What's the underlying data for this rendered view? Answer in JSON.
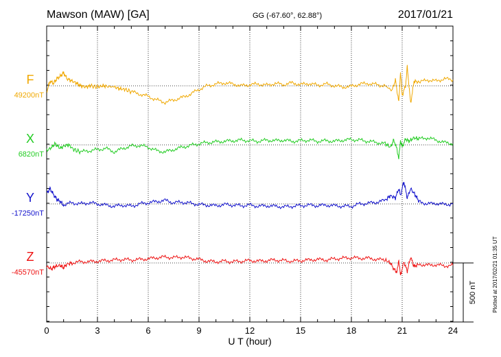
{
  "header": {
    "station": "Mawson (MAW)  [GA]",
    "coords": "GG (-67.60°,  62.88°)",
    "date": "2017/01/21"
  },
  "footer": {
    "plotted": "Plotted at 2017/02/21 01:35 UT"
  },
  "scale_bar": {
    "label": "500 nT",
    "value_nT": 500
  },
  "chart_data": {
    "type": "line",
    "xlabel": "U T (hour)",
    "xlim": [
      0,
      24
    ],
    "xticks": [
      0,
      3,
      6,
      9,
      12,
      15,
      18,
      21,
      24
    ],
    "xtick_labels": [
      "0",
      "3",
      "6",
      "9",
      "12",
      "15",
      "18",
      "21",
      "24"
    ],
    "grid": true,
    "units": "nT",
    "series": [
      {
        "name": "F",
        "baseline_label": "49200nT",
        "baseline": 49200,
        "color": "#f0a800",
        "points": [
          [
            0,
            49150
          ],
          [
            0.2,
            49240
          ],
          [
            0.4,
            49220
          ],
          [
            0.6,
            49260
          ],
          [
            0.8,
            49280
          ],
          [
            1.0,
            49310
          ],
          [
            1.2,
            49260
          ],
          [
            1.5,
            49240
          ],
          [
            1.8,
            49220
          ],
          [
            2.0,
            49200
          ],
          [
            2.3,
            49190
          ],
          [
            2.6,
            49200
          ],
          [
            3.0,
            49190
          ],
          [
            3.3,
            49200
          ],
          [
            3.6,
            49195
          ],
          [
            4.0,
            49190
          ],
          [
            4.3,
            49175
          ],
          [
            4.6,
            49170
          ],
          [
            5.0,
            49150
          ],
          [
            5.5,
            49130
          ],
          [
            6.0,
            49110
          ],
          [
            6.5,
            49080
          ],
          [
            7.0,
            49060
          ],
          [
            7.5,
            49080
          ],
          [
            8.0,
            49100
          ],
          [
            8.5,
            49130
          ],
          [
            9.0,
            49170
          ],
          [
            9.5,
            49200
          ],
          [
            10.0,
            49215
          ],
          [
            10.5,
            49225
          ],
          [
            11.0,
            49215
          ],
          [
            11.5,
            49200
          ],
          [
            12.0,
            49210
          ],
          [
            12.5,
            49215
          ],
          [
            13.0,
            49205
          ],
          [
            13.5,
            49220
          ],
          [
            14.0,
            49210
          ],
          [
            14.5,
            49225
          ],
          [
            15.0,
            49210
          ],
          [
            15.5,
            49220
          ],
          [
            16.0,
            49205
          ],
          [
            16.5,
            49215
          ],
          [
            17.0,
            49200
          ],
          [
            17.5,
            49190
          ],
          [
            18.0,
            49195
          ],
          [
            18.5,
            49215
          ],
          [
            19.0,
            49220
          ],
          [
            19.5,
            49210
          ],
          [
            20.0,
            49200
          ],
          [
            20.4,
            49160
          ],
          [
            20.6,
            49250
          ],
          [
            20.8,
            49060
          ],
          [
            20.9,
            49320
          ],
          [
            21.0,
            49120
          ],
          [
            21.2,
            49200
          ],
          [
            21.3,
            49360
          ],
          [
            21.5,
            49050
          ],
          [
            21.7,
            49240
          ],
          [
            22.0,
            49230
          ],
          [
            22.5,
            49250
          ],
          [
            23.0,
            49240
          ],
          [
            23.5,
            49260
          ],
          [
            24.0,
            49250
          ]
        ]
      },
      {
        "name": "X",
        "baseline_label": "6820nT",
        "baseline": 6820,
        "color": "#22cc22",
        "points": [
          [
            0,
            6770
          ],
          [
            0.3,
            6800
          ],
          [
            0.5,
            6830
          ],
          [
            0.8,
            6790
          ],
          [
            1.0,
            6810
          ],
          [
            1.3,
            6820
          ],
          [
            1.6,
            6780
          ],
          [
            2.0,
            6760
          ],
          [
            2.5,
            6770
          ],
          [
            3.0,
            6780
          ],
          [
            3.5,
            6790
          ],
          [
            4.0,
            6760
          ],
          [
            4.5,
            6790
          ],
          [
            5.0,
            6810
          ],
          [
            5.5,
            6815
          ],
          [
            6.0,
            6800
          ],
          [
            6.5,
            6770
          ],
          [
            7.0,
            6760
          ],
          [
            7.5,
            6780
          ],
          [
            8.0,
            6800
          ],
          [
            8.5,
            6815
          ],
          [
            9.0,
            6830
          ],
          [
            9.5,
            6840
          ],
          [
            10.0,
            6845
          ],
          [
            10.5,
            6850
          ],
          [
            11.0,
            6855
          ],
          [
            11.5,
            6860
          ],
          [
            12.0,
            6855
          ],
          [
            12.5,
            6850
          ],
          [
            13.0,
            6860
          ],
          [
            13.5,
            6855
          ],
          [
            14.0,
            6860
          ],
          [
            14.5,
            6850
          ],
          [
            15.0,
            6855
          ],
          [
            15.5,
            6860
          ],
          [
            16.0,
            6850
          ],
          [
            16.5,
            6855
          ],
          [
            17.0,
            6850
          ],
          [
            17.5,
            6860
          ],
          [
            18.0,
            6865
          ],
          [
            18.5,
            6860
          ],
          [
            19.0,
            6850
          ],
          [
            19.5,
            6840
          ],
          [
            20.0,
            6830
          ],
          [
            20.3,
            6800
          ],
          [
            20.5,
            6860
          ],
          [
            20.7,
            6780
          ],
          [
            20.8,
            6700
          ],
          [
            20.9,
            6860
          ],
          [
            21.0,
            6800
          ],
          [
            21.2,
            6870
          ],
          [
            21.4,
            6850
          ],
          [
            21.7,
            6880
          ],
          [
            22.0,
            6870
          ],
          [
            22.5,
            6880
          ],
          [
            23.0,
            6860
          ],
          [
            23.5,
            6840
          ],
          [
            24.0,
            6830
          ]
        ]
      },
      {
        "name": "Y",
        "baseline_label": "-17250nT",
        "baseline": -17250,
        "color": "#1010cc",
        "points": [
          [
            0,
            -17160
          ],
          [
            0.2,
            -17120
          ],
          [
            0.4,
            -17170
          ],
          [
            0.6,
            -17210
          ],
          [
            0.8,
            -17230
          ],
          [
            1.0,
            -17260
          ],
          [
            1.5,
            -17240
          ],
          [
            2.0,
            -17250
          ],
          [
            2.5,
            -17240
          ],
          [
            3.0,
            -17250
          ],
          [
            3.5,
            -17260
          ],
          [
            4.0,
            -17270
          ],
          [
            4.5,
            -17260
          ],
          [
            5.0,
            -17270
          ],
          [
            5.5,
            -17250
          ],
          [
            6.0,
            -17240
          ],
          [
            6.5,
            -17230
          ],
          [
            7.0,
            -17220
          ],
          [
            7.5,
            -17240
          ],
          [
            8.0,
            -17235
          ],
          [
            8.5,
            -17245
          ],
          [
            9.0,
            -17255
          ],
          [
            9.5,
            -17260
          ],
          [
            10.0,
            -17265
          ],
          [
            10.5,
            -17255
          ],
          [
            11.0,
            -17260
          ],
          [
            11.5,
            -17265
          ],
          [
            12.0,
            -17260
          ],
          [
            12.5,
            -17270
          ],
          [
            13.0,
            -17265
          ],
          [
            13.5,
            -17270
          ],
          [
            14.0,
            -17275
          ],
          [
            14.5,
            -17270
          ],
          [
            15.0,
            -17265
          ],
          [
            15.5,
            -17260
          ],
          [
            16.0,
            -17265
          ],
          [
            16.5,
            -17260
          ],
          [
            17.0,
            -17265
          ],
          [
            17.5,
            -17270
          ],
          [
            18.0,
            -17270
          ],
          [
            18.5,
            -17250
          ],
          [
            19.0,
            -17245
          ],
          [
            19.5,
            -17235
          ],
          [
            20.0,
            -17220
          ],
          [
            20.3,
            -17180
          ],
          [
            20.6,
            -17200
          ],
          [
            20.8,
            -17120
          ],
          [
            20.9,
            -17180
          ],
          [
            21.1,
            -17060
          ],
          [
            21.3,
            -17200
          ],
          [
            21.5,
            -17120
          ],
          [
            21.8,
            -17180
          ],
          [
            22.0,
            -17230
          ],
          [
            22.5,
            -17250
          ],
          [
            23.0,
            -17245
          ],
          [
            23.5,
            -17255
          ],
          [
            24.0,
            -17250
          ]
        ]
      },
      {
        "name": "Z",
        "baseline_label": "-45570nT",
        "baseline": -45570,
        "color": "#ee1111",
        "points": [
          [
            0,
            -45600
          ],
          [
            0.3,
            -45620
          ],
          [
            0.5,
            -45600
          ],
          [
            0.8,
            -45590
          ],
          [
            1.0,
            -45610
          ],
          [
            1.2,
            -45580
          ],
          [
            1.5,
            -45570
          ],
          [
            2.0,
            -45560
          ],
          [
            2.5,
            -45560
          ],
          [
            3.0,
            -45555
          ],
          [
            3.5,
            -45550
          ],
          [
            4.0,
            -45545
          ],
          [
            4.5,
            -45540
          ],
          [
            5.0,
            -45545
          ],
          [
            5.5,
            -45540
          ],
          [
            6.0,
            -45535
          ],
          [
            6.5,
            -45525
          ],
          [
            7.0,
            -45520
          ],
          [
            7.5,
            -45525
          ],
          [
            8.0,
            -45520
          ],
          [
            8.5,
            -45530
          ],
          [
            9.0,
            -45540
          ],
          [
            9.5,
            -45555
          ],
          [
            10.0,
            -45560
          ],
          [
            10.5,
            -45555
          ],
          [
            11.0,
            -45560
          ],
          [
            11.5,
            -45555
          ],
          [
            12.0,
            -45550
          ],
          [
            12.5,
            -45555
          ],
          [
            13.0,
            -45550
          ],
          [
            13.5,
            -45545
          ],
          [
            14.0,
            -45550
          ],
          [
            14.5,
            -45555
          ],
          [
            15.0,
            -45550
          ],
          [
            15.5,
            -45545
          ],
          [
            16.0,
            -45540
          ],
          [
            16.5,
            -45545
          ],
          [
            17.0,
            -45535
          ],
          [
            17.5,
            -45530
          ],
          [
            18.0,
            -45525
          ],
          [
            18.5,
            -45530
          ],
          [
            19.0,
            -45530
          ],
          [
            19.5,
            -45540
          ],
          [
            20.0,
            -45545
          ],
          [
            20.3,
            -45570
          ],
          [
            20.5,
            -45620
          ],
          [
            20.7,
            -45650
          ],
          [
            20.8,
            -45540
          ],
          [
            20.9,
            -45680
          ],
          [
            21.1,
            -45560
          ],
          [
            21.3,
            -45640
          ],
          [
            21.5,
            -45520
          ],
          [
            21.7,
            -45600
          ],
          [
            22.0,
            -45580
          ],
          [
            22.5,
            -45590
          ],
          [
            23.0,
            -45585
          ],
          [
            23.5,
            -45595
          ],
          [
            24.0,
            -45590
          ]
        ]
      }
    ]
  }
}
